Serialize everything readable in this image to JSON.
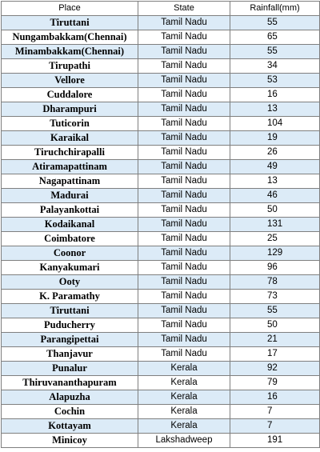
{
  "table": {
    "headers": {
      "place": "Place",
      "state": "State",
      "rainfall": "Rainfall(mm)"
    },
    "rows": [
      {
        "place": "Tiruttani",
        "state": "Tamil Nadu",
        "rainfall": "55"
      },
      {
        "place": "Nungambakkam(Chennai)",
        "state": "Tamil Nadu",
        "rainfall": "65"
      },
      {
        "place": "Minambakkam(Chennai)",
        "state": "Tamil Nadu",
        "rainfall": "55"
      },
      {
        "place": "Tirupathi",
        "state": "Tamil Nadu",
        "rainfall": "34"
      },
      {
        "place": "Vellore",
        "state": "Tamil Nadu",
        "rainfall": "53"
      },
      {
        "place": "Cuddalore",
        "state": "Tamil Nadu",
        "rainfall": "16"
      },
      {
        "place": "Dharampuri",
        "state": "Tamil Nadu",
        "rainfall": "13"
      },
      {
        "place": "Tuticorin",
        "state": "Tamil Nadu",
        "rainfall": "104"
      },
      {
        "place": "Karaikal",
        "state": "Tamil Nadu",
        "rainfall": "19"
      },
      {
        "place": "Tiruchchirapalli",
        "state": "Tamil Nadu",
        "rainfall": "26"
      },
      {
        "place": "Atiramapattinam",
        "state": "Tamil Nadu",
        "rainfall": "49"
      },
      {
        "place": "Nagapattinam",
        "state": "Tamil Nadu",
        "rainfall": "13"
      },
      {
        "place": "Madurai",
        "state": "Tamil Nadu",
        "rainfall": "46"
      },
      {
        "place": "Palayankottai",
        "state": "Tamil Nadu",
        "rainfall": "50"
      },
      {
        "place": "Kodaikanal",
        "state": "Tamil Nadu",
        "rainfall": "131"
      },
      {
        "place": "Coimbatore",
        "state": "Tamil Nadu",
        "rainfall": "25"
      },
      {
        "place": "Coonor",
        "state": "Tamil Nadu",
        "rainfall": "129"
      },
      {
        "place": "Kanyakumari",
        "state": "Tamil Nadu",
        "rainfall": "96"
      },
      {
        "place": "Ooty",
        "state": "Tamil Nadu",
        "rainfall": "78"
      },
      {
        "place": "K. Paramathy",
        "state": "Tamil Nadu",
        "rainfall": "73"
      },
      {
        "place": "Tiruttani",
        "state": "Tamil Nadu",
        "rainfall": "55"
      },
      {
        "place": "Puducherry",
        "state": "Tamil Nadu",
        "rainfall": "50"
      },
      {
        "place": "Parangipettai",
        "state": "Tamil Nadu",
        "rainfall": "21"
      },
      {
        "place": "Thanjavur",
        "state": "Tamil Nadu",
        "rainfall": "17"
      },
      {
        "place": "Punalur",
        "state": "Kerala",
        "rainfall": "92"
      },
      {
        "place": "Thiruvananthapuram",
        "state": "Kerala",
        "rainfall": "79"
      },
      {
        "place": "Alapuzha",
        "state": "Kerala",
        "rainfall": "16"
      },
      {
        "place": "Cochin",
        "state": "Kerala",
        "rainfall": "7"
      },
      {
        "place": "Kottayam",
        "state": "Kerala",
        "rainfall": "7"
      },
      {
        "place": "Minicoy",
        "state": "Lakshadweep",
        "rainfall": "191"
      }
    ]
  },
  "colors": {
    "stripe": "#dcebf7",
    "border": "#7f7f7f"
  }
}
